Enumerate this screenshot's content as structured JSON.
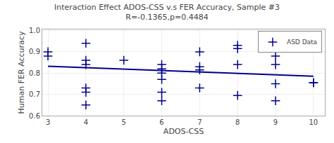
{
  "chart_data": {
    "type": "scatter",
    "title": "Interaction Effect ADOS-CSS v.s FER Accuracy, Sample #3",
    "subtitle": "R=-0.1365,p=0.4484",
    "x_label": "ADOS-CSS",
    "y_label": "Human FER Accuracy",
    "series": [
      {
        "name": "ASD Data",
        "type": "scatter",
        "marker": "plus",
        "color": "#00008B",
        "x": [
          3,
          3,
          4,
          4,
          4,
          4,
          4,
          4,
          5,
          6,
          6,
          6,
          6,
          6,
          6,
          7,
          7,
          7,
          7,
          8,
          8,
          8,
          8,
          9,
          9,
          9,
          9,
          10,
          10
        ],
        "values": [
          0.9,
          0.88,
          0.94,
          0.86,
          0.84,
          0.73,
          0.71,
          0.65,
          0.86,
          0.84,
          0.82,
          0.8,
          0.77,
          0.71,
          0.67,
          0.9,
          0.83,
          0.815,
          0.73,
          0.93,
          0.915,
          0.84,
          0.695,
          0.88,
          0.84,
          0.75,
          0.67,
          0.755,
          0.755
        ]
      },
      {
        "type": "line",
        "line_style": "solid",
        "color": "#00008B",
        "x": [
          3,
          10
        ],
        "values": [
          0.832,
          0.785
        ]
      }
    ],
    "xlim": [
      2.85,
      10.3
    ],
    "ylim": [
      0.6,
      1.005
    ],
    "xticks": [
      3,
      4,
      5,
      6,
      7,
      8,
      9,
      10
    ],
    "yticks": [
      0.6,
      0.7,
      0.8,
      0.9,
      {
        "value": 1.0,
        "label": "1.0"
      }
    ],
    "grid": true,
    "legend": "upper right"
  }
}
